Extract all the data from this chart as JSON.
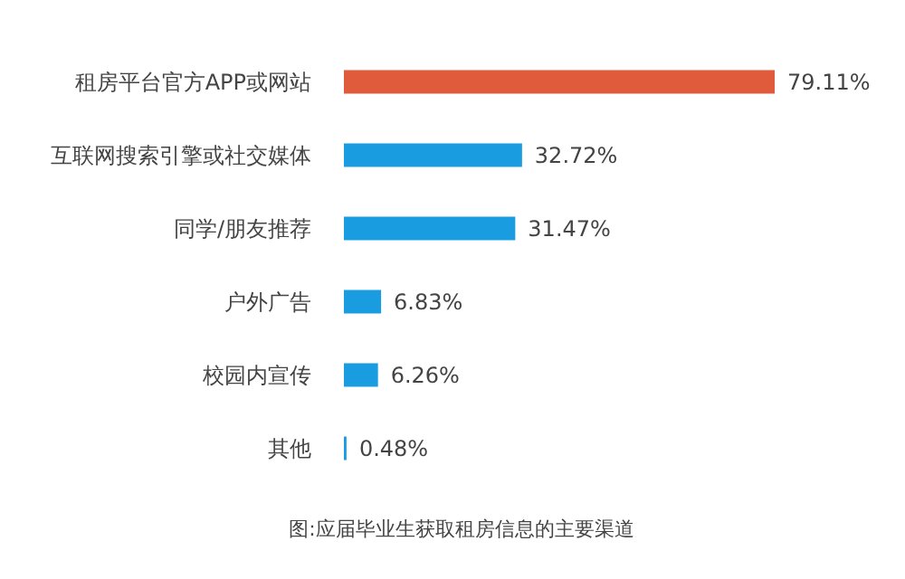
{
  "chart_data": {
    "type": "bar",
    "orientation": "horizontal",
    "categories": [
      "租房平台官方APP或网站",
      "互联网搜索引擎或社交媒体",
      "同学/朋友推荐",
      "户外广告",
      "校园内宣传",
      "其他"
    ],
    "values": [
      79.11,
      32.72,
      31.47,
      6.83,
      6.26,
      0.48
    ],
    "value_labels": [
      "79.11%",
      "32.72%",
      "31.47%",
      "6.83%",
      "6.26%",
      "0.48%"
    ],
    "colors": [
      "#e05a3c",
      "#1a9de0",
      "#1a9de0",
      "#1a9de0",
      "#1a9de0",
      "#1a9de0"
    ],
    "annotations": [
      "图:应届毕业生获取租房信息的主要渠道"
    ],
    "grid": false,
    "legend": false
  }
}
